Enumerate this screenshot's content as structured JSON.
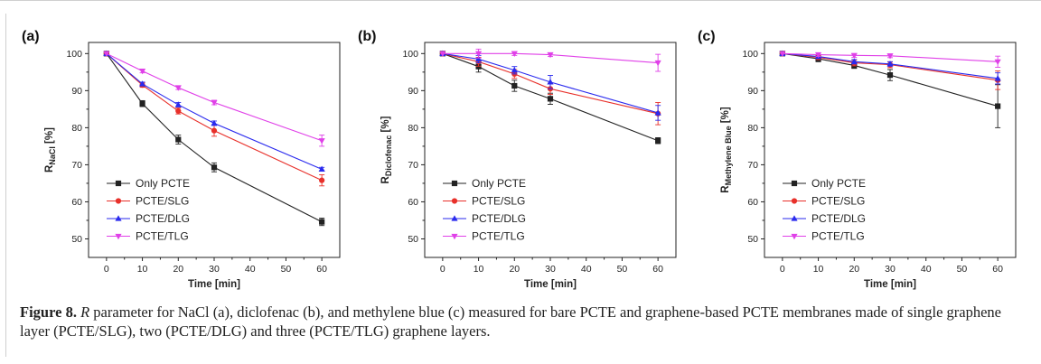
{
  "caption": {
    "label": "Figure 8.",
    "r_symbol": "R",
    "text": "parameter for NaCl (a), diclofenac (b), and methylene blue (c) measured for bare PCTE and graphene-based PCTE membranes made of single graphene layer (PCTE/SLG), two (PCTE/DLG) and three (PCTE/TLG) graphene layers."
  },
  "colors": {
    "Only PCTE": "#222222",
    "PCTE/SLG": "#e8302a",
    "PCTE/DLG": "#2a2aee",
    "PCTE/TLG": "#e040e8"
  },
  "markers": {
    "Only PCTE": "square",
    "PCTE/SLG": "circle",
    "PCTE/DLG": "triangle-up",
    "PCTE/TLG": "triangle-down"
  },
  "chart_data": [
    {
      "type": "line",
      "panel_label": "(a)",
      "xlabel": "Time [min]",
      "ylabel_main": "R",
      "ylabel_sub": "NaCl",
      "ylabel_suffix": " [%]",
      "xlim": [
        -5,
        65
      ],
      "ylim": [
        45,
        103
      ],
      "xticks": [
        0,
        10,
        20,
        30,
        40,
        50,
        60
      ],
      "yticks": [
        50,
        60,
        70,
        80,
        90,
        100
      ],
      "legend_position": "bottom-left",
      "x": [
        0,
        10,
        20,
        30,
        60
      ],
      "series": [
        {
          "name": "Only PCTE",
          "values": [
            100,
            86.5,
            76.8,
            69.3,
            54.6
          ],
          "errors": [
            0,
            0.8,
            1.2,
            1.2,
            1.0
          ]
        },
        {
          "name": "PCTE/SLG",
          "values": [
            100,
            91.5,
            84.5,
            79.2,
            65.8
          ],
          "errors": [
            0,
            0.6,
            0.8,
            1.5,
            1.5
          ]
        },
        {
          "name": "PCTE/DLG",
          "values": [
            100,
            91.8,
            86.2,
            81.2,
            68.8
          ],
          "errors": [
            0,
            0.5,
            0.6,
            0.6,
            0.5
          ]
        },
        {
          "name": "PCTE/TLG",
          "values": [
            100,
            95.3,
            90.8,
            86.8,
            76.5
          ],
          "errors": [
            0,
            0.5,
            0.5,
            0.6,
            1.5
          ]
        }
      ]
    },
    {
      "type": "line",
      "panel_label": "(b)",
      "xlabel": "Time [min]",
      "ylabel_main": "R",
      "ylabel_sub": "Diclofenac",
      "ylabel_suffix": " [%]",
      "xlim": [
        -5,
        65
      ],
      "ylim": [
        45,
        103
      ],
      "xticks": [
        0,
        10,
        20,
        30,
        40,
        50,
        60
      ],
      "yticks": [
        50,
        60,
        70,
        80,
        90,
        100
      ],
      "legend_position": "bottom-left",
      "x": [
        0,
        10,
        20,
        30,
        60
      ],
      "series": [
        {
          "name": "Only PCTE",
          "values": [
            100,
            96.5,
            91.3,
            87.8,
            76.5
          ],
          "errors": [
            0,
            1.5,
            1.5,
            1.5,
            0.8
          ]
        },
        {
          "name": "PCTE/SLG",
          "values": [
            100,
            97.8,
            94.5,
            90.5,
            83.8
          ],
          "errors": [
            0,
            1.2,
            1.2,
            1.5,
            3.0
          ]
        },
        {
          "name": "PCTE/DLG",
          "values": [
            100,
            98.5,
            95.5,
            92.3,
            84.0
          ],
          "errors": [
            0,
            1.0,
            1.0,
            1.8,
            2.0
          ]
        },
        {
          "name": "PCTE/TLG",
          "values": [
            100,
            100,
            100,
            99.7,
            97.5
          ],
          "errors": [
            0,
            1.2,
            0.5,
            0.5,
            2.3
          ]
        }
      ]
    },
    {
      "type": "line",
      "panel_label": "(c)",
      "xlabel": "Time [min]",
      "ylabel_main": "R",
      "ylabel_sub": "Methylene Blue",
      "ylabel_suffix": " [%]",
      "xlim": [
        -5,
        65
      ],
      "ylim": [
        45,
        103
      ],
      "xticks": [
        0,
        10,
        20,
        30,
        40,
        50,
        60
      ],
      "yticks": [
        50,
        60,
        70,
        80,
        90,
        100
      ],
      "legend_position": "bottom-left",
      "x": [
        0,
        10,
        20,
        30,
        60
      ],
      "series": [
        {
          "name": "Only PCTE",
          "values": [
            100,
            98.6,
            96.8,
            94.2,
            85.8
          ],
          "errors": [
            0,
            0.8,
            0.8,
            1.5,
            5.8
          ]
        },
        {
          "name": "PCTE/SLG",
          "values": [
            100,
            99.0,
            97.5,
            97.0,
            92.8
          ],
          "errors": [
            0,
            0.6,
            0.8,
            0.8,
            2.5
          ]
        },
        {
          "name": "PCTE/DLG",
          "values": [
            100,
            99.2,
            97.8,
            97.2,
            93.3
          ],
          "errors": [
            0,
            0.5,
            0.6,
            0.6,
            1.5
          ]
        },
        {
          "name": "PCTE/TLG",
          "values": [
            100,
            99.7,
            99.5,
            99.4,
            97.8
          ],
          "errors": [
            0,
            0.5,
            0.5,
            0.5,
            1.5
          ]
        }
      ]
    }
  ]
}
